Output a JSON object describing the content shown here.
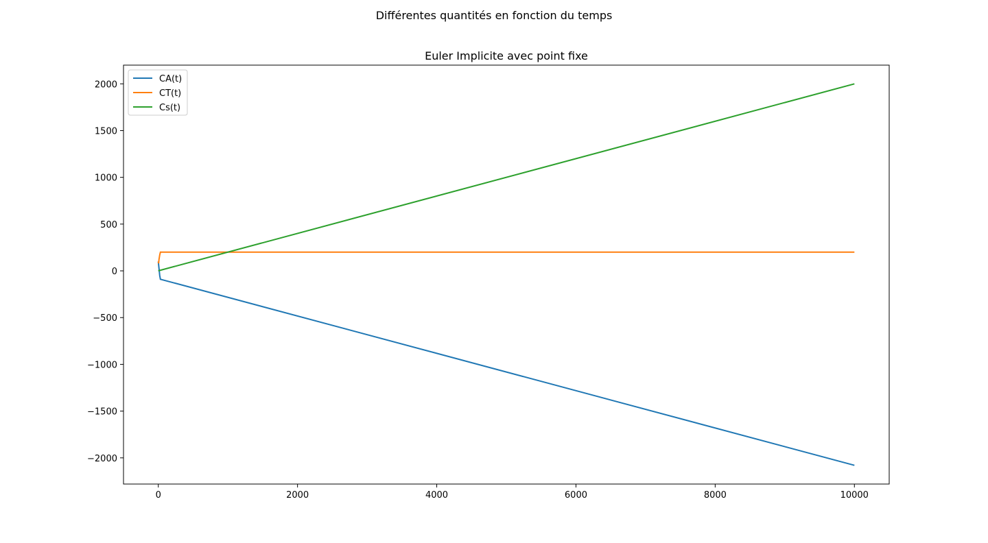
{
  "figure": {
    "suptitle": "Différentes quantités en fonction du temps"
  },
  "chart_data": {
    "type": "line",
    "title": "Euler Implicite avec point fixe",
    "xlabel": "",
    "ylabel": "",
    "xlim": [
      -500,
      10500
    ],
    "ylim": [
      -2280,
      2200
    ],
    "xticks": [
      0,
      2000,
      4000,
      6000,
      8000,
      10000
    ],
    "xtick_labels": [
      "0",
      "2000",
      "4000",
      "6000",
      "8000",
      "10000"
    ],
    "yticks": [
      -2000,
      -1500,
      -1000,
      -500,
      0,
      500,
      1000,
      1500,
      2000
    ],
    "ytick_labels": [
      "−2000",
      "−1500",
      "−1000",
      "−500",
      "0",
      "500",
      "1000",
      "1500",
      "2000"
    ],
    "grid": false,
    "legend": {
      "position": "upper-left",
      "entries": [
        "CA(t)",
        "CT(t)",
        "Cs(t)"
      ]
    },
    "series": [
      {
        "name": "CA(t)",
        "color": "#1f77b4",
        "x": [
          0,
          10,
          20,
          30,
          10000
        ],
        "y": [
          100,
          30,
          -50,
          -90,
          -2080
        ]
      },
      {
        "name": "CT(t)",
        "color": "#ff7f0e",
        "x": [
          0,
          5,
          10,
          20,
          30,
          10000
        ],
        "y": [
          100,
          80,
          120,
          170,
          200,
          200
        ]
      },
      {
        "name": "Cs(t)",
        "color": "#2ca02c",
        "x": [
          0,
          10000
        ],
        "y": [
          0,
          2000
        ]
      }
    ]
  }
}
